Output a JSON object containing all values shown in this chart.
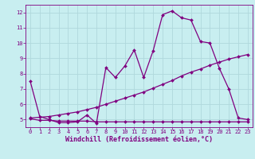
{
  "xlabel": "Windchill (Refroidissement éolien,°C)",
  "bg_color": "#c8eef0",
  "line_color": "#800080",
  "grid_color": "#b0d8dc",
  "xlim": [
    -0.5,
    23.5
  ],
  "ylim": [
    4.5,
    12.5
  ],
  "xticks": [
    0,
    1,
    2,
    3,
    4,
    5,
    6,
    7,
    8,
    9,
    10,
    11,
    12,
    13,
    14,
    15,
    16,
    17,
    18,
    19,
    20,
    21,
    22,
    23
  ],
  "yticks": [
    5,
    6,
    7,
    8,
    9,
    10,
    11,
    12
  ],
  "line1_x": [
    0,
    1,
    2,
    3,
    4,
    5,
    6,
    7,
    8,
    9,
    10,
    11,
    12,
    13,
    14,
    15,
    16,
    17,
    18,
    19,
    20,
    21,
    22,
    23
  ],
  "line1_y": [
    7.5,
    5.2,
    5.0,
    4.8,
    4.8,
    4.85,
    5.3,
    4.75,
    8.4,
    7.75,
    8.5,
    9.55,
    7.75,
    9.5,
    11.85,
    12.1,
    11.65,
    11.5,
    10.1,
    10.0,
    8.35,
    7.0,
    5.1,
    5.0
  ],
  "line2_x": [
    0,
    1,
    2,
    3,
    4,
    5,
    6,
    7,
    8,
    9,
    10,
    11,
    12,
    13,
    14,
    15,
    16,
    17,
    18,
    19,
    20,
    21,
    22,
    23
  ],
  "line2_y": [
    5.05,
    4.95,
    4.95,
    4.9,
    4.9,
    4.9,
    4.9,
    4.85,
    4.85,
    4.85,
    4.85,
    4.85,
    4.85,
    4.85,
    4.85,
    4.85,
    4.85,
    4.85,
    4.85,
    4.85,
    4.85,
    4.85,
    4.85,
    4.85
  ],
  "line3_x": [
    0,
    1,
    2,
    3,
    4,
    5,
    6,
    7,
    8,
    9,
    10,
    11,
    12,
    13,
    14,
    15,
    16,
    17,
    18,
    19,
    20,
    21,
    22,
    23
  ],
  "line3_y": [
    5.1,
    5.15,
    5.2,
    5.3,
    5.4,
    5.5,
    5.65,
    5.8,
    6.0,
    6.2,
    6.4,
    6.6,
    6.8,
    7.05,
    7.3,
    7.55,
    7.85,
    8.1,
    8.3,
    8.55,
    8.75,
    8.95,
    9.1,
    9.25
  ],
  "marker": "D",
  "markersize": 2.0,
  "linewidth": 0.9,
  "tick_fontsize": 5.0,
  "xlabel_fontsize": 6.0
}
